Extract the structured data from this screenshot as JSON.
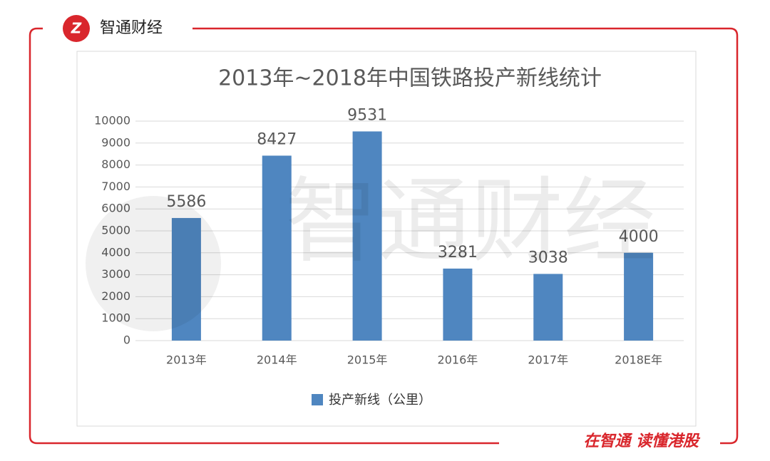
{
  "brand": {
    "name": "智通财经",
    "slogan": "在智通 读懂港股"
  },
  "chart_data": {
    "type": "bar",
    "title": "2013年~2018年中国铁路投产新线统计",
    "categories": [
      "2013年",
      "2014年",
      "2015年",
      "2016年",
      "2017年",
      "2018E年"
    ],
    "series": [
      {
        "name": "投产新线（公里）",
        "color": "#4f86c0",
        "values": [
          5586,
          8427,
          9531,
          3281,
          3038,
          4000
        ]
      }
    ],
    "ylim": [
      0,
      10000
    ],
    "yticks": [
      0,
      1000,
      2000,
      3000,
      4000,
      5000,
      6000,
      7000,
      8000,
      9000,
      10000
    ],
    "grid": true,
    "legend": "bottom"
  }
}
